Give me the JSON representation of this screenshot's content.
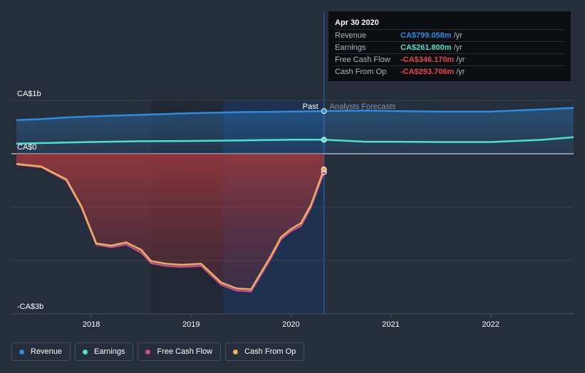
{
  "chart_data": {
    "type": "line",
    "x_unit": "year",
    "xlim": [
      2017.2,
      2022.83
    ],
    "ylim": [
      -3.0,
      1.0
    ],
    "y_tick_labels": [
      {
        "value": 1.0,
        "label": "CA$1b"
      },
      {
        "value": 0.0,
        "label": "CA$0"
      },
      {
        "value": -3.0,
        "label": "-CA$3b"
      }
    ],
    "x_tick_labels": [
      {
        "value": 2018,
        "label": "2018"
      },
      {
        "value": 2019,
        "label": "2019"
      },
      {
        "value": 2020,
        "label": "2020"
      },
      {
        "value": 2021,
        "label": "2021"
      },
      {
        "value": 2022,
        "label": "2022"
      }
    ],
    "grid": true,
    "past_label": "Past",
    "forecast_label": "Analysts Forecasts",
    "past_end": 2020.33,
    "series": [
      {
        "name": "Revenue",
        "color": "#2b8de0",
        "points": [
          [
            2017.25,
            0.63
          ],
          [
            2017.5,
            0.65
          ],
          [
            2017.75,
            0.68
          ],
          [
            2018.0,
            0.7
          ],
          [
            2018.5,
            0.73
          ],
          [
            2019.0,
            0.76
          ],
          [
            2019.5,
            0.78
          ],
          [
            2020.0,
            0.79
          ],
          [
            2020.33,
            0.8
          ],
          [
            2020.75,
            0.81
          ],
          [
            2021.0,
            0.8
          ],
          [
            2021.5,
            0.79
          ],
          [
            2022.0,
            0.79
          ],
          [
            2022.5,
            0.83
          ],
          [
            2022.83,
            0.86
          ]
        ]
      },
      {
        "name": "Earnings",
        "color": "#4fe0c8",
        "points": [
          [
            2017.25,
            0.19
          ],
          [
            2017.5,
            0.2
          ],
          [
            2017.75,
            0.21
          ],
          [
            2018.0,
            0.22
          ],
          [
            2018.5,
            0.235
          ],
          [
            2019.0,
            0.24
          ],
          [
            2019.5,
            0.25
          ],
          [
            2020.0,
            0.262
          ],
          [
            2020.33,
            0.262
          ],
          [
            2020.75,
            0.225
          ],
          [
            2021.0,
            0.225
          ],
          [
            2021.5,
            0.22
          ],
          [
            2022.0,
            0.22
          ],
          [
            2022.5,
            0.26
          ],
          [
            2022.83,
            0.31
          ]
        ]
      },
      {
        "name": "Free Cash Flow",
        "color": "#c74f8e",
        "points": [
          [
            2017.25,
            -0.2
          ],
          [
            2017.5,
            -0.25
          ],
          [
            2017.75,
            -0.5
          ],
          [
            2017.9,
            -1.0
          ],
          [
            2018.05,
            -1.7
          ],
          [
            2018.2,
            -1.75
          ],
          [
            2018.35,
            -1.7
          ],
          [
            2018.5,
            -1.85
          ],
          [
            2018.6,
            -2.05
          ],
          [
            2018.75,
            -2.1
          ],
          [
            2018.9,
            -2.12
          ],
          [
            2019.1,
            -2.1
          ],
          [
            2019.3,
            -2.45
          ],
          [
            2019.45,
            -2.56
          ],
          [
            2019.6,
            -2.58
          ],
          [
            2019.8,
            -1.95
          ],
          [
            2019.9,
            -1.6
          ],
          [
            2020.0,
            -1.45
          ],
          [
            2020.1,
            -1.35
          ],
          [
            2020.2,
            -1.0
          ],
          [
            2020.33,
            -0.346
          ]
        ]
      },
      {
        "name": "Cash From Op",
        "color": "#e8b062",
        "points": [
          [
            2017.25,
            -0.19
          ],
          [
            2017.5,
            -0.24
          ],
          [
            2017.75,
            -0.48
          ],
          [
            2017.9,
            -0.98
          ],
          [
            2018.05,
            -1.68
          ],
          [
            2018.2,
            -1.72
          ],
          [
            2018.35,
            -1.66
          ],
          [
            2018.5,
            -1.8
          ],
          [
            2018.6,
            -2.01
          ],
          [
            2018.75,
            -2.06
          ],
          [
            2018.9,
            -2.08
          ],
          [
            2019.1,
            -2.06
          ],
          [
            2019.3,
            -2.41
          ],
          [
            2019.45,
            -2.52
          ],
          [
            2019.6,
            -2.54
          ],
          [
            2019.8,
            -1.91
          ],
          [
            2019.9,
            -1.56
          ],
          [
            2020.0,
            -1.41
          ],
          [
            2020.1,
            -1.3
          ],
          [
            2020.2,
            -0.96
          ],
          [
            2020.33,
            -0.294
          ]
        ]
      }
    ]
  },
  "tooltip": {
    "date": "Apr 30 2020",
    "rows": [
      {
        "name": "Revenue",
        "value": "CA$799.058m",
        "unit": "/yr",
        "color": "#2b8de0"
      },
      {
        "name": "Earnings",
        "value": "CA$261.800m",
        "unit": "/yr",
        "color": "#4fe0c8"
      },
      {
        "name": "Free Cash Flow",
        "value": "-CA$346.170m",
        "unit": "/yr",
        "color": "#e64646"
      },
      {
        "name": "Cash From Op",
        "value": "-CA$293.706m",
        "unit": "/yr",
        "color": "#e64646"
      }
    ]
  },
  "legend": [
    {
      "label": "Revenue",
      "color": "#2b8de0"
    },
    {
      "label": "Earnings",
      "color": "#4fe0c8"
    },
    {
      "label": "Free Cash Flow",
      "color": "#c74f8e"
    },
    {
      "label": "Cash From Op",
      "color": "#e8b062"
    }
  ]
}
